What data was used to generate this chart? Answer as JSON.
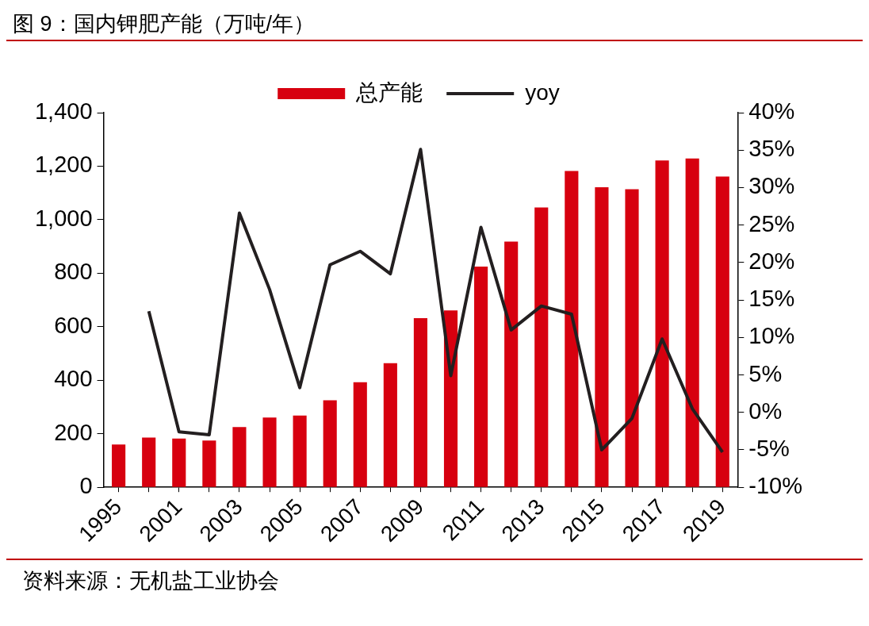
{
  "chart_data": {
    "type": "bar",
    "title": "图 9：国内钾肥产能（万吨/年）",
    "categories": [
      "1995",
      null,
      "2001",
      null,
      "2003",
      null,
      "2005",
      null,
      "2007",
      null,
      "2009",
      null,
      "2011",
      null,
      "2013",
      null,
      "2015",
      null,
      "2017",
      null,
      "2019"
    ],
    "series": [
      {
        "name": "总产能",
        "color": "#d7000f",
        "values": [
          160,
          186,
          182,
          175,
          225,
          261,
          268,
          325,
          393,
          464,
          632,
          661,
          825,
          918,
          1046,
          1182,
          1121,
          1114,
          1221,
          1229,
          1161
        ]
      },
      {
        "name": "yoy",
        "type": "line",
        "axis": "y2",
        "color": "#231f20",
        "values": [
          null,
          13.5,
          -2.6,
          -3.0,
          26.6,
          16.4,
          3.3,
          19.7,
          21.5,
          18.5,
          35.1,
          4.9,
          24.7,
          11.0,
          14.2,
          13.1,
          -5.0,
          -0.8,
          9.8,
          0.5,
          -5.3
        ]
      }
    ],
    "ylim": [
      0,
      1400
    ],
    "yticks": [
      0,
      200,
      400,
      600,
      800,
      {
        "value": 1000,
        "label": "1,000"
      },
      {
        "value": 1200,
        "label": "1,200"
      },
      {
        "value": 1400,
        "label": "1,400"
      }
    ],
    "y2lim": [
      -10,
      40
    ],
    "y2ticks": [
      {
        "value": -10,
        "label": "-10%"
      },
      {
        "value": -5,
        "label": "-5%"
      },
      {
        "value": 0,
        "label": "0%"
      },
      {
        "value": 5,
        "label": "5%"
      },
      {
        "value": 10,
        "label": "10%"
      },
      {
        "value": 15,
        "label": "15%"
      },
      {
        "value": 20,
        "label": "20%"
      },
      {
        "value": 25,
        "label": "25%"
      },
      {
        "value": 30,
        "label": "30%"
      },
      {
        "value": 35,
        "label": "35%"
      },
      {
        "value": 40,
        "label": "40%"
      }
    ],
    "grid": false,
    "legend": "top",
    "marker": "none",
    "line_style": "solid",
    "annotations": [
      "资料来源：无机盐工业协会"
    ]
  }
}
